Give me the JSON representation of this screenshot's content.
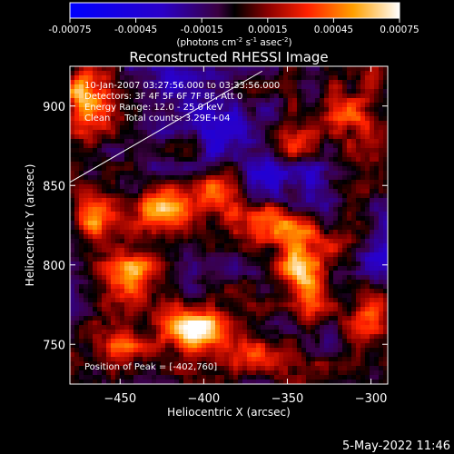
{
  "chart_data": {
    "type": "heatmap",
    "title": "Reconstructed RHESSI Image",
    "xlabel": "Heliocentric X (arcsec)",
    "ylabel": "Heliocentric Y (arcsec)",
    "xlim": [
      -480,
      -290
    ],
    "ylim": [
      725,
      925
    ],
    "x_ticks": [
      -450,
      -400,
      -350,
      -300
    ],
    "y_ticks": [
      750,
      800,
      850,
      900
    ],
    "colorbar": {
      "range": [
        -0.00075,
        0.00075
      ],
      "ticks": [
        "-0.00075",
        "-0.00045",
        "-0.00015",
        "0.00015",
        "0.00045",
        "0.00075"
      ],
      "unit_label": "(photons cm",
      "unit_sup1": "-2",
      "unit_mid": " s",
      "unit_sup2": "-1",
      "unit_mid2": " asec",
      "unit_sup3": "-2",
      "unit_end": ")",
      "colormap": "blue-purple-red-yellow-white"
    },
    "annotations": {
      "line1": "10-Jan-2007 03:27:56.000 to 03:33:56.000",
      "line2": "Detectors: 3F 4F 5F 6F 7F 8F, Att 0",
      "line3": "Energy Range: 12.0 - 25.0 keV",
      "line4": "Clean     Total counts: 3.29E+04",
      "peak": "Position of Peak = [-402,760]"
    },
    "limb_line": [
      [
        -480,
        852
      ],
      [
        -365,
        922
      ]
    ],
    "features": [
      {
        "x": -470,
        "y": 905,
        "amp": 1.0,
        "sx": 9,
        "sy": 18
      },
      {
        "x": -405,
        "y": 760,
        "amp": 1.1,
        "sx": 14,
        "sy": 10
      },
      {
        "x": -340,
        "y": 800,
        "amp": 1.0,
        "sx": 10,
        "sy": 22
      },
      {
        "x": -360,
        "y": 825,
        "amp": 0.9,
        "sx": 14,
        "sy": 9
      },
      {
        "x": -315,
        "y": 820,
        "amp": 0.8,
        "sx": 10,
        "sy": 14
      },
      {
        "x": -425,
        "y": 835,
        "amp": 0.7,
        "sx": 12,
        "sy": 9
      },
      {
        "x": -395,
        "y": 845,
        "amp": 0.6,
        "sx": 10,
        "sy": 10
      },
      {
        "x": -445,
        "y": 795,
        "amp": 0.7,
        "sx": 12,
        "sy": 12
      },
      {
        "x": -350,
        "y": 875,
        "amp": 0.7,
        "sx": 10,
        "sy": 10
      },
      {
        "x": -310,
        "y": 895,
        "amp": 0.8,
        "sx": 9,
        "sy": 10
      },
      {
        "x": -300,
        "y": 770,
        "amp": 0.8,
        "sx": 9,
        "sy": 14
      },
      {
        "x": -450,
        "y": 755,
        "amp": 0.6,
        "sx": 9,
        "sy": 9
      },
      {
        "x": -370,
        "y": 745,
        "amp": 0.6,
        "sx": 12,
        "sy": 8
      },
      {
        "x": -465,
        "y": 830,
        "amp": 0.7,
        "sx": 9,
        "sy": 9
      }
    ]
  },
  "footer": {
    "date": "5-May-2022 11:46"
  },
  "colors": {
    "background": "#000000",
    "foreground": "#ffffff"
  }
}
